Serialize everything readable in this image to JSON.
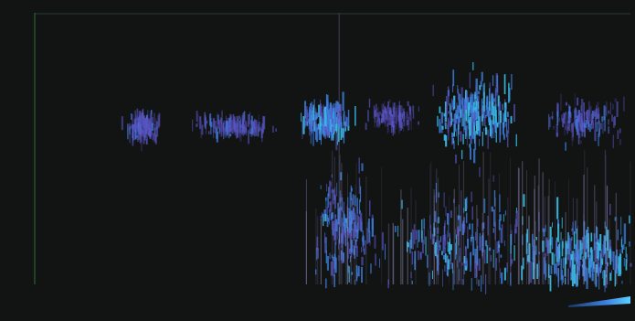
{
  "chart_data": {
    "type": "heatmap",
    "title": "",
    "xlabel": "",
    "ylabel": "",
    "y_ticks": [
      "",
      "",
      "",
      "",
      "",
      "",
      "",
      "",
      "",
      "",
      "",
      "",
      "",
      "",
      "",
      "",
      "",
      "",
      "",
      "",
      "",
      "",
      "",
      "",
      "",
      "",
      "",
      "",
      "",
      "",
      "",
      "",
      "",
      "",
      "",
      "",
      ""
    ],
    "x_ticks": [
      "",
      "",
      "",
      "",
      "",
      "",
      "",
      "",
      "",
      "",
      "",
      "",
      "",
      "",
      ""
    ],
    "colormap": [
      "#111412",
      "#3a2f6e",
      "#5a57c8",
      "#3d7fe0",
      "#38b8e0"
    ],
    "grid": false,
    "intensity_clusters": [
      {
        "x_center": 0.18,
        "y_center": 0.42,
        "spread_x": 0.02,
        "spread_y": 0.04,
        "intensity": 0.55
      },
      {
        "x_center": 0.33,
        "y_center": 0.42,
        "spread_x": 0.05,
        "spread_y": 0.03,
        "intensity": 0.6
      },
      {
        "x_center": 0.49,
        "y_center": 0.4,
        "spread_x": 0.03,
        "spread_y": 0.05,
        "intensity": 0.85
      },
      {
        "x_center": 0.6,
        "y_center": 0.38,
        "spread_x": 0.03,
        "spread_y": 0.04,
        "intensity": 0.5
      },
      {
        "x_center": 0.74,
        "y_center": 0.38,
        "spread_x": 0.05,
        "spread_y": 0.1,
        "intensity": 0.95
      },
      {
        "x_center": 0.92,
        "y_center": 0.4,
        "spread_x": 0.05,
        "spread_y": 0.06,
        "intensity": 0.6
      },
      {
        "x_center": 0.52,
        "y_center": 0.8,
        "spread_x": 0.04,
        "spread_y": 0.15,
        "intensity": 0.75
      },
      {
        "x_center": 0.72,
        "y_center": 0.85,
        "spread_x": 0.1,
        "spread_y": 0.15,
        "intensity": 0.85
      },
      {
        "x_center": 0.92,
        "y_center": 0.9,
        "spread_x": 0.08,
        "spread_y": 0.12,
        "intensity": 1.0
      }
    ]
  },
  "footer": {
    "caption": "",
    "colorbar_label": ""
  }
}
